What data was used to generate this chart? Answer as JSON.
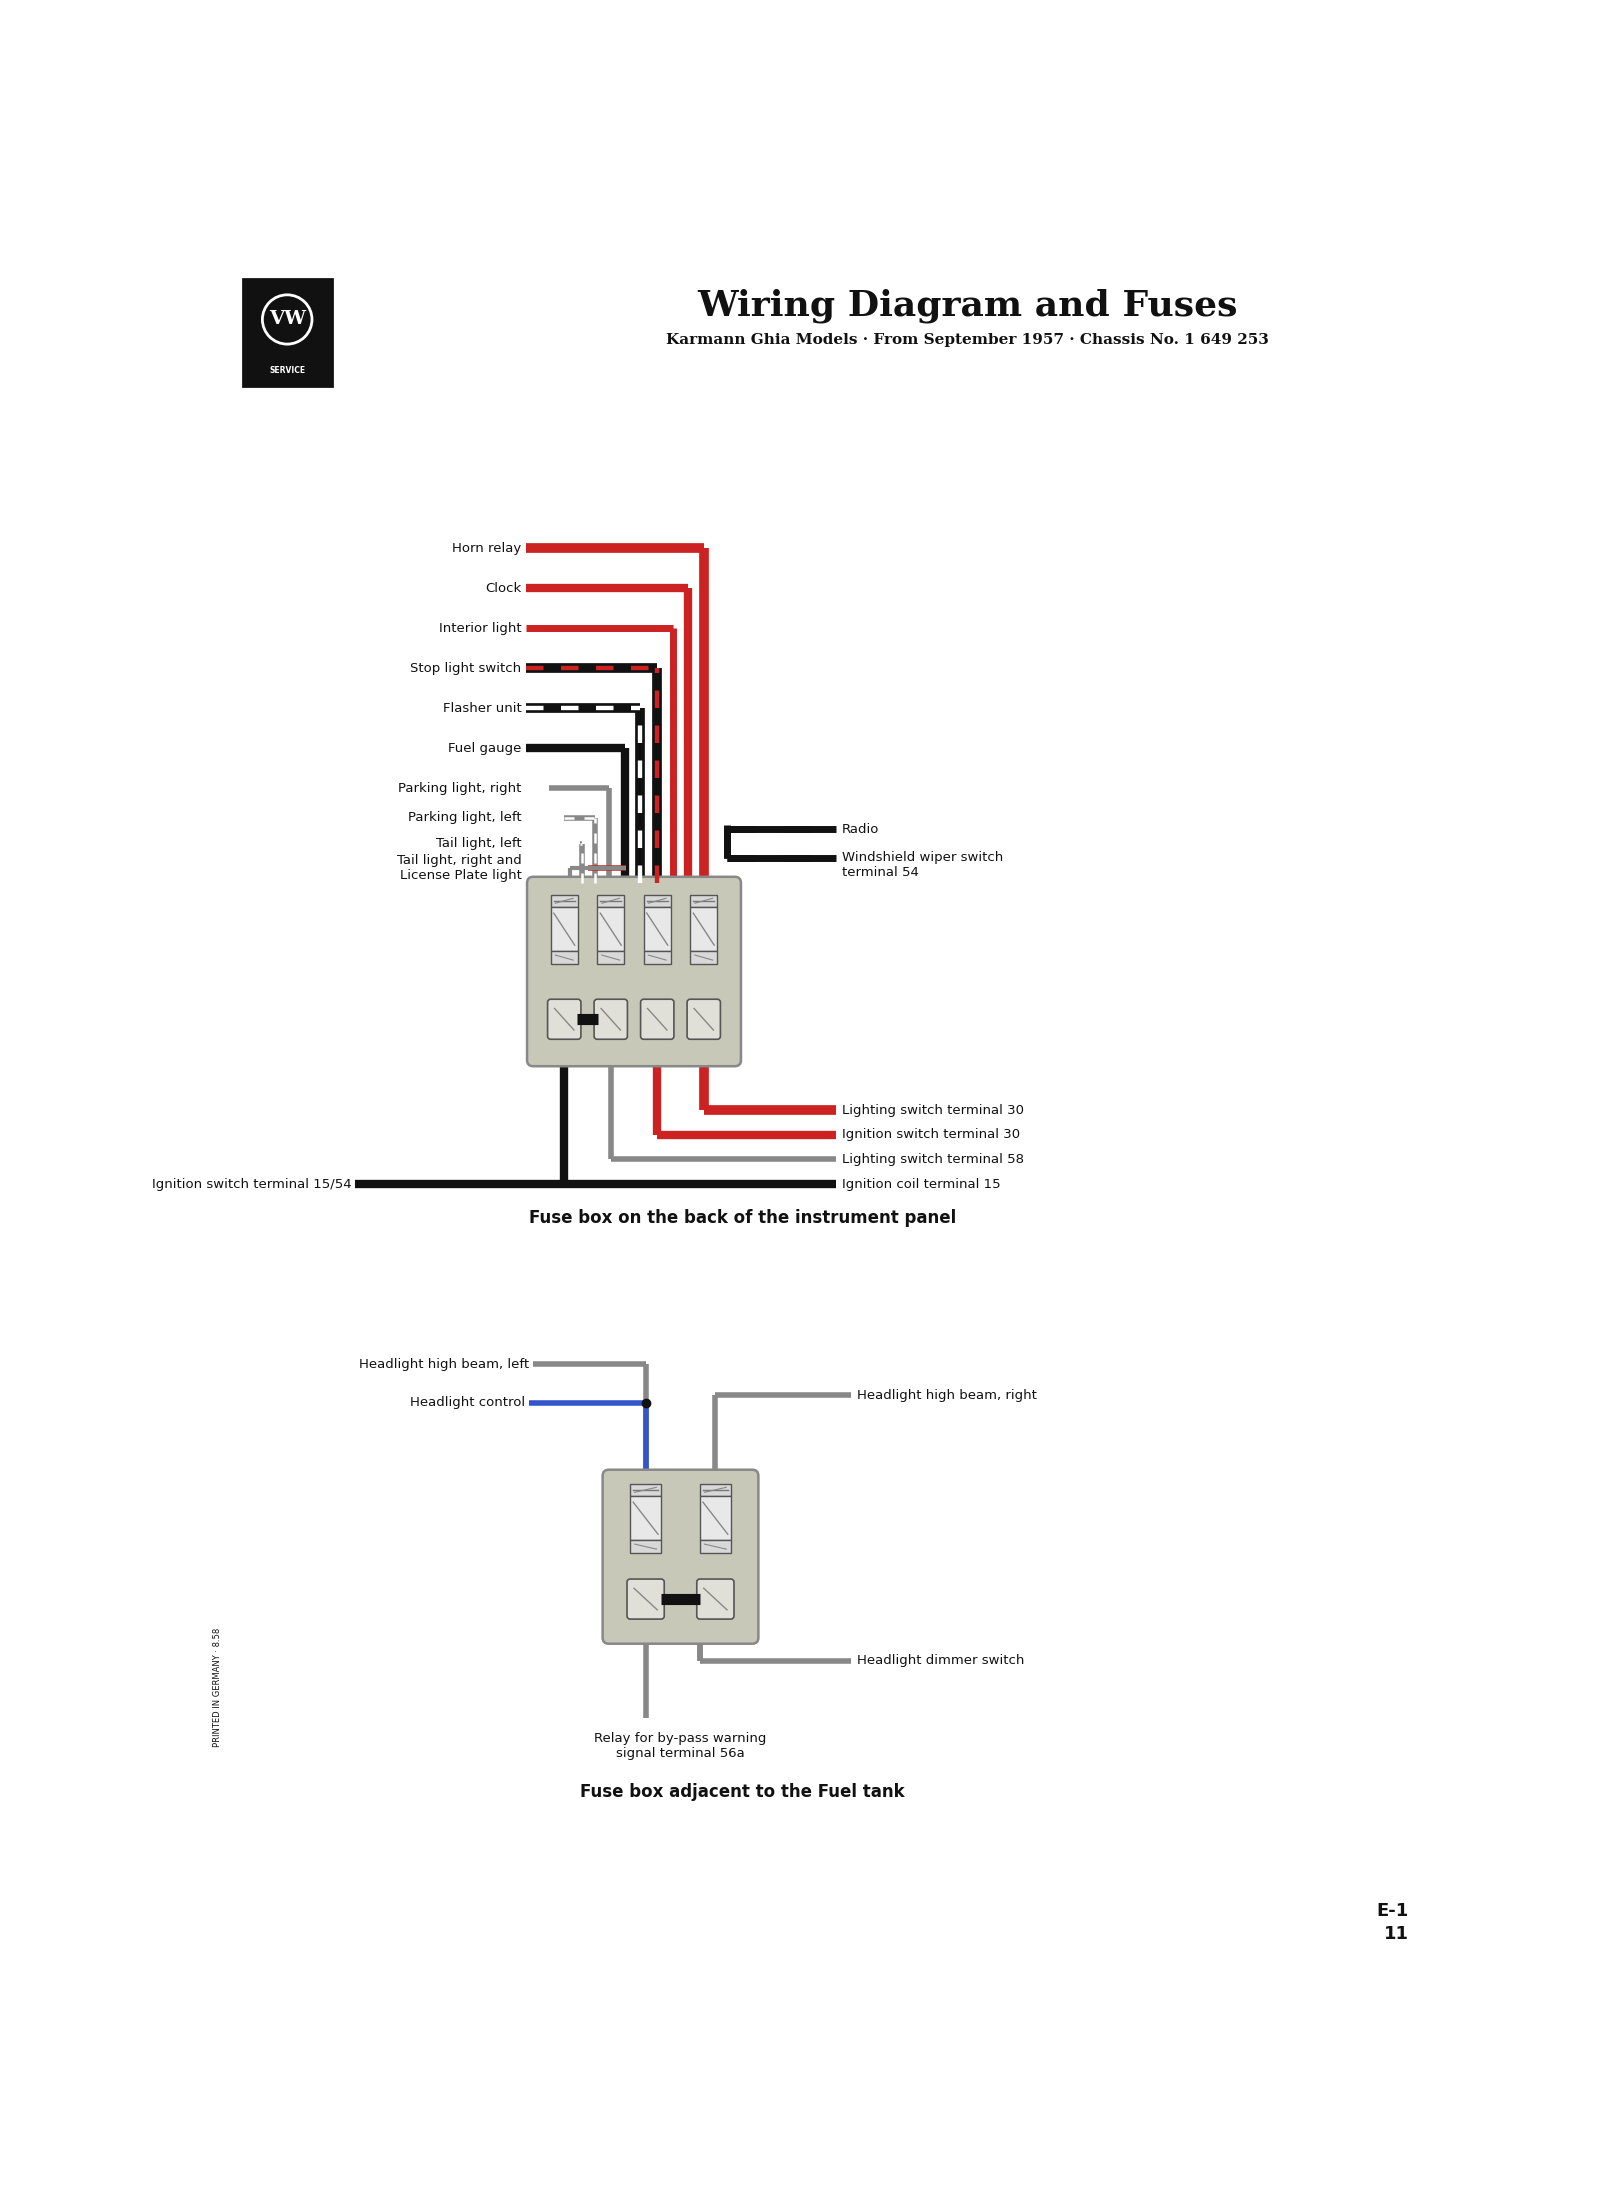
{
  "title": "Wiring Diagram and Fuses",
  "subtitle": "Karmann Ghia Models · From September 1957 · Chassis No. 1 649 253",
  "bg_color": "#ffffff",
  "title_fontsize": 26,
  "subtitle_fontsize": 11,
  "fuse_box1_caption": "Fuse box on the back of the instrument panel",
  "fuse_box2_caption": "Fuse box adjacent to the Fuel tank",
  "printed_text": "PRINTED IN GERMANY · 8.58",
  "red_color": "#cc2222",
  "gray_color": "#bbbbbb",
  "black_color": "#111111"
}
